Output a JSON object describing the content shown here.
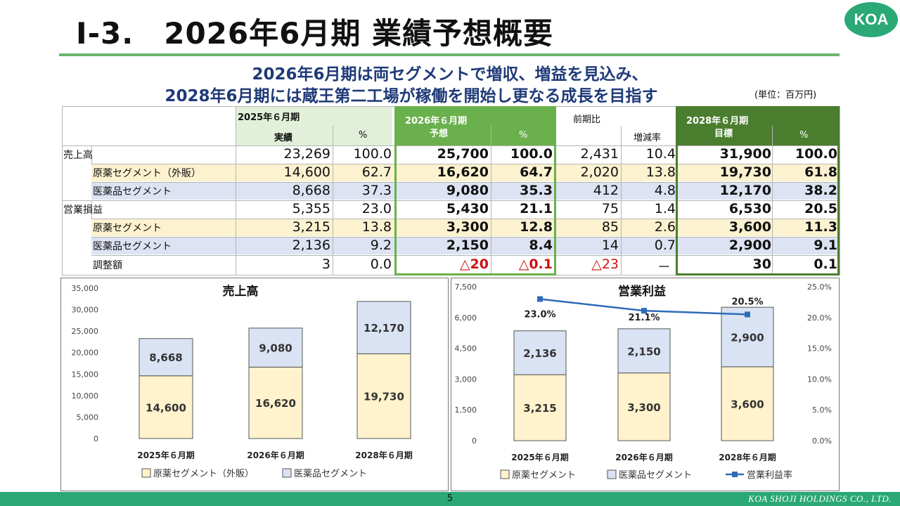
{
  "header": {
    "title": "Ⅰ-3.　2026年6月期 業績予想概要",
    "logo": "KOA",
    "subtitle_line1": "2026年6月期は両セグメントで増収、増益を見込み、",
    "subtitle_line2": "2028年6月期には蔵王第二工場が稼働を開始し更なる成長を目指す",
    "unit": "(単位：百万円)"
  },
  "table": {
    "col_headers": {
      "fy2025": "2025年６月期",
      "actual": "実績",
      "pct": "%",
      "fy2026": "2026年６月期",
      "forecast": "予想",
      "yoy": "前期比",
      "change_rate": "増減率",
      "fy2028": "2028年６月期",
      "target": "目標"
    },
    "rows": [
      {
        "label": "売上高",
        "actual": "23,269",
        "actual_pct": "100.0",
        "forecast": "25,700",
        "forecast_pct": "100.0",
        "yoy": "2,431",
        "yoy_rate": "10.4",
        "target": "31,900",
        "target_pct": "100.0"
      },
      {
        "label": "原薬セグメント（外販）",
        "actual": "14,600",
        "actual_pct": "62.7",
        "forecast": "16,620",
        "forecast_pct": "64.7",
        "yoy": "2,020",
        "yoy_rate": "13.8",
        "target": "19,730",
        "target_pct": "61.8"
      },
      {
        "label": "医薬品セグメント",
        "actual": "8,668",
        "actual_pct": "37.3",
        "forecast": "9,080",
        "forecast_pct": "35.3",
        "yoy": "412",
        "yoy_rate": "4.8",
        "target": "12,170",
        "target_pct": "38.2"
      },
      {
        "label": "営業損益",
        "actual": "5,355",
        "actual_pct": "23.0",
        "forecast": "5,430",
        "forecast_pct": "21.1",
        "yoy": "75",
        "yoy_rate": "1.4",
        "target": "6,530",
        "target_pct": "20.5"
      },
      {
        "label": "原薬セグメント",
        "actual": "3,215",
        "actual_pct": "13.8",
        "forecast": "3,300",
        "forecast_pct": "12.8",
        "yoy": "85",
        "yoy_rate": "2.6",
        "target": "3,600",
        "target_pct": "11.3"
      },
      {
        "label": "医薬品セグメント",
        "actual": "2,136",
        "actual_pct": "9.2",
        "forecast": "2,150",
        "forecast_pct": "8.4",
        "yoy": "14",
        "yoy_rate": "0.7",
        "target": "2,900",
        "target_pct": "9.1"
      },
      {
        "label": "調整額",
        "actual": "3",
        "actual_pct": "0.0",
        "forecast": "△20",
        "forecast_pct": "△0.1",
        "yoy": "△23",
        "yoy_rate": "－",
        "target": "30",
        "target_pct": "0.1"
      }
    ]
  },
  "colors": {
    "accent_green": "#2aa876",
    "forecast_green": "#6ab04c",
    "target_green": "#4b7d2e",
    "actual_header": "#e2f0d9",
    "yellow_fill": "#fff2cc",
    "blue_fill": "#dae3f3",
    "line_blue": "#2e6bb8",
    "negative_red": "#d01010",
    "title_navy": "#1f3a78"
  },
  "chart_data": [
    {
      "type": "bar",
      "stacked": true,
      "title": "売上高",
      "categories": [
        "2025年６月期",
        "2026年６月期",
        "2028年６月期"
      ],
      "series": [
        {
          "name": "原薬セグメント（外販）",
          "values": [
            14600,
            16620,
            19730
          ],
          "color": "#fff2cc"
        },
        {
          "name": "医薬品セグメント",
          "values": [
            8668,
            9080,
            12170
          ],
          "color": "#dae3f3"
        }
      ],
      "ylim": [
        0,
        35000
      ],
      "yticks": [
        "0",
        "5,000",
        "10,000",
        "15,000",
        "20,000",
        "25,000",
        "30,000",
        "35,000"
      ],
      "legend": "bottom"
    },
    {
      "type": "bar",
      "stacked": true,
      "title": "営業利益",
      "categories": [
        "2025年６月期",
        "2026年６月期",
        "2028年６月期"
      ],
      "series": [
        {
          "name": "原薬セグメント",
          "values": [
            3215,
            3300,
            3600
          ],
          "color": "#fff2cc"
        },
        {
          "name": "医薬品セグメント",
          "values": [
            2136,
            2150,
            2900
          ],
          "color": "#dae3f3"
        },
        {
          "name": "営業利益率",
          "type": "line",
          "axis": "right",
          "values": [
            23.0,
            21.1,
            20.5
          ],
          "labels": [
            "23.0%",
            "21.1%",
            "20.5%"
          ],
          "color": "#2e6bb8"
        }
      ],
      "ylim": [
        0,
        7500
      ],
      "yticks": [
        "0",
        "1,500",
        "3,000",
        "4,500",
        "6,000",
        "7,500"
      ],
      "y2lim": [
        0,
        25
      ],
      "y2ticks": [
        "0.0%",
        "5.0%",
        "10.0%",
        "15.0%",
        "20.0%",
        "25.0%"
      ],
      "legend": "bottom"
    }
  ],
  "footer": {
    "page": "5",
    "company": "KOA SHOJI HOLDINGS CO., LTD."
  }
}
